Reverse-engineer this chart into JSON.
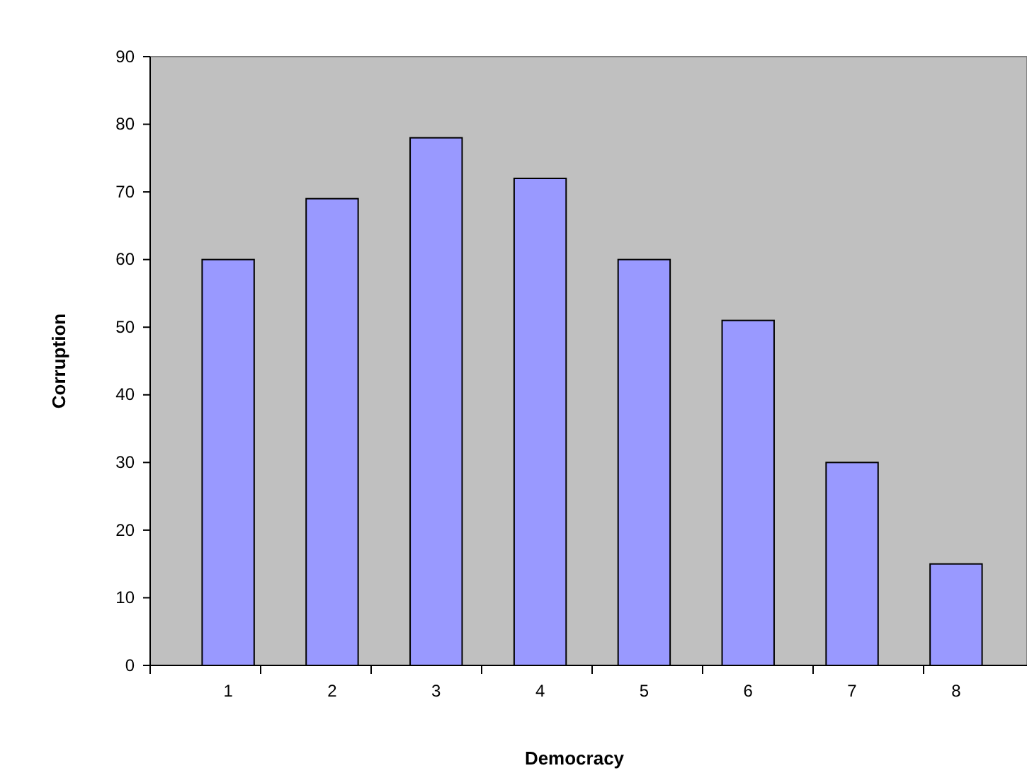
{
  "chart_data": {
    "type": "bar",
    "xlabel": "Democracy",
    "ylabel": "Corruption",
    "categories": [
      "1",
      "2",
      "3",
      "4",
      "5",
      "6",
      "7",
      "8"
    ],
    "values": [
      60,
      69,
      78,
      72,
      60,
      51,
      30,
      15
    ],
    "color": "#9999ff",
    "ylim": [
      0,
      90
    ],
    "yticks": [
      0,
      10,
      20,
      30,
      40,
      50,
      60,
      70,
      80,
      90
    ],
    "grid": false
  }
}
